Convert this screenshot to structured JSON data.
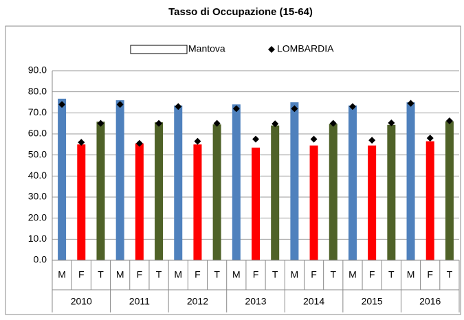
{
  "chart_data": {
    "type": "bar",
    "title": "Tasso di Occupazione (15-64)",
    "categories": [
      "M",
      "F",
      "T",
      "M",
      "F",
      "T",
      "M",
      "F",
      "T",
      "M",
      "F",
      "T",
      "M",
      "F",
      "T",
      "M",
      "F",
      "T",
      "M",
      "F",
      "T"
    ],
    "groups": [
      "2010",
      "2011",
      "2012",
      "2013",
      "2014",
      "2015",
      "2016"
    ],
    "sub_colors": [
      "#4f81bd",
      "#ff0000",
      "#4f6228"
    ],
    "series": [
      {
        "name": "Mantova",
        "color": "#ffffff",
        "values": [
          76.7,
          55,
          65.8,
          76,
          55.5,
          65.5,
          73.5,
          55,
          64.5,
          74,
          53.5,
          64,
          75,
          54.5,
          64.8,
          73.5,
          54.5,
          64.3,
          75,
          56.5,
          66
        ]
      },
      {
        "name": "LOMBARDIA",
        "color": "#000000",
        "marker": "diamond",
        "values": [
          74,
          56,
          65,
          74,
          55.5,
          65,
          73,
          56.5,
          65,
          72,
          57.5,
          64.8,
          72,
          57.5,
          65,
          73,
          57,
          65.2,
          74.5,
          58,
          66.2
        ]
      }
    ],
    "ylim": [
      0,
      90
    ],
    "yticks": [
      {
        "value": 0,
        "label": "0.0"
      },
      {
        "value": 10,
        "label": "10.0"
      },
      {
        "value": 20,
        "label": "20.0"
      },
      {
        "value": 30,
        "label": "30.0"
      },
      {
        "value": 40,
        "label": "40.0"
      },
      {
        "value": 50,
        "label": "50.0"
      },
      {
        "value": 60,
        "label": "60.0"
      },
      {
        "value": 70,
        "label": "70.0"
      },
      {
        "value": 80,
        "label": "80.0"
      },
      {
        "value": 90,
        "label": "90.0"
      }
    ],
    "grid": true
  }
}
